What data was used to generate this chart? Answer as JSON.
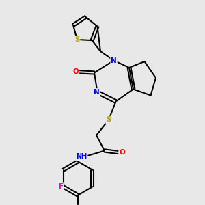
{
  "bg_color": "#e8e8e8",
  "atom_colors": {
    "S": "#b8a000",
    "N": "#0000ff",
    "O": "#ff0000",
    "F": "#ff00cc",
    "H": "#60a0a0",
    "C": "#000000"
  },
  "bond_color": "#000000",
  "bond_width": 1.5
}
